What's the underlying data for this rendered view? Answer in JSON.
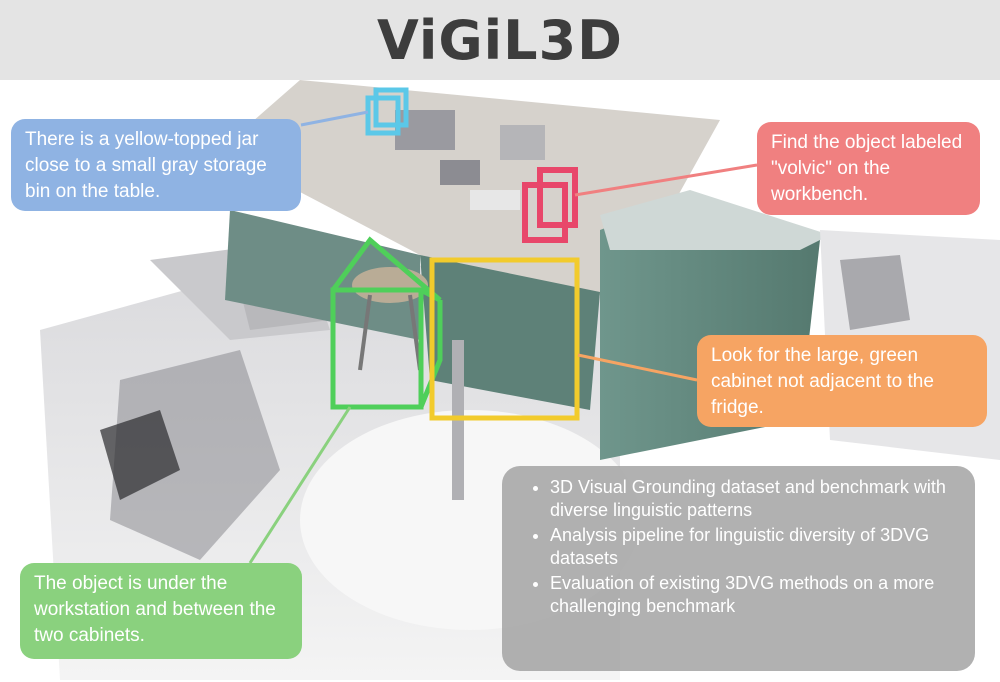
{
  "header": {
    "title": "ViGiL3D"
  },
  "callouts": {
    "blue": "There is a yellow-topped jar close to a small gray storage bin on the table.",
    "red": "Find the object labeled \"volvic\" on the workbench.",
    "orange": "Look for the large, green cabinet not adjacent to the fridge.",
    "green": "The object is under the workstation and between the two cabinets."
  },
  "summary": {
    "items": [
      "3D Visual Grounding dataset and benchmark with diverse linguistic patterns",
      "Analysis pipeline for linguistic diversity of 3DVG datasets",
      "Evaluation of existing 3DVG methods on a more challenging benchmark"
    ]
  },
  "colors": {
    "blue_box": "#5bc8e8",
    "red_box": "#e8476a",
    "green_box": "#4fcf5a",
    "yellow_box": "#f2cb2c",
    "cabinet": "#5f8a80"
  }
}
